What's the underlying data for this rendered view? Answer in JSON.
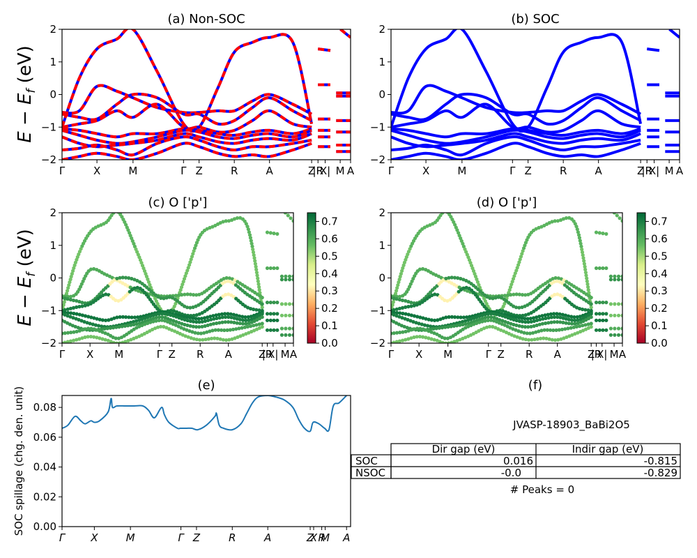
{
  "figure": {
    "ylabel_bands": "E − E_f (eV)",
    "ylabel_bands_base": "E − E",
    "ylabel_bands_sub": "f",
    "ylabel_bands_unit": " (eV)"
  },
  "chart_data": [
    {
      "id": "a",
      "type": "line",
      "title": "(a) Non-SOC",
      "ylim": [
        -2,
        2
      ],
      "yticks": [
        "−2",
        "−1",
        "0",
        "1",
        "2"
      ],
      "kpath_labels": [
        "Γ",
        "X",
        "M",
        "Γ",
        "Z",
        "R",
        "A",
        "Z",
        "|R",
        "X|",
        "M",
        "A"
      ],
      "kpath_positions": [
        0,
        0.121,
        0.246,
        0.421,
        0.475,
        0.597,
        0.719,
        0.865,
        0.887,
        0.912,
        0.964,
        1.0
      ],
      "colors": [
        "#0000ff",
        "#ff0000"
      ],
      "line_style": "red dashed over blue solid",
      "segment_break": 0.887,
      "bands": [
        {
          "k": [
            0,
            0.06,
            0.121,
            0.19,
            0.246,
            0.33,
            0.421,
            0.475,
            0.54,
            0.597,
            0.66,
            0.719,
            0.8,
            0.865
          ],
          "E": [
            -1.0,
            0.5,
            1.4,
            1.7,
            2.0,
            0.7,
            -0.9,
            -1.0,
            0.2,
            1.3,
            1.6,
            1.75,
            1.6,
            -0.9
          ]
        },
        {
          "k": [
            0,
            0.06,
            0.121,
            0.19,
            0.246,
            0.33,
            0.421,
            0.475,
            0.54,
            0.597,
            0.66,
            0.719,
            0.8,
            0.865
          ],
          "E": [
            -0.55,
            -0.5,
            0.25,
            0.1,
            -0.1,
            -0.4,
            -0.55,
            -0.55,
            -0.5,
            -0.5,
            -0.2,
            0.0,
            -0.3,
            -0.6
          ]
        },
        {
          "k": [
            0,
            0.06,
            0.121,
            0.19,
            0.246,
            0.33,
            0.421,
            0.475,
            0.54,
            0.597,
            0.66,
            0.719,
            0.8,
            0.865
          ],
          "E": [
            -0.6,
            -0.7,
            -0.75,
            -0.3,
            0.0,
            -0.1,
            -0.6,
            -0.6,
            -0.9,
            -0.8,
            -0.4,
            -0.1,
            -0.5,
            -0.8
          ]
        },
        {
          "k": [
            0,
            0.06,
            0.121,
            0.19,
            0.246,
            0.33,
            0.421,
            0.475,
            0.54,
            0.597,
            0.66,
            0.719,
            0.8,
            0.865
          ],
          "E": [
            -1.0,
            -0.9,
            -0.8,
            -0.5,
            -0.7,
            -0.3,
            -1.0,
            -1.0,
            -1.15,
            -1.1,
            -0.8,
            -0.5,
            -0.9,
            -1.0
          ]
        },
        {
          "k": [
            0,
            0.06,
            0.121,
            0.19,
            0.246,
            0.33,
            0.421,
            0.475,
            0.54,
            0.597,
            0.66,
            0.719,
            0.8,
            0.865
          ],
          "E": [
            -1.05,
            -1.1,
            -1.2,
            -1.3,
            -1.2,
            -1.2,
            -1.05,
            -1.1,
            -1.2,
            -1.25,
            -1.15,
            -1.1,
            -1.2,
            -1.05
          ]
        },
        {
          "k": [
            0,
            0.06,
            0.121,
            0.19,
            0.246,
            0.33,
            0.421,
            0.475,
            0.54,
            0.597,
            0.66,
            0.719,
            0.8,
            0.865
          ],
          "E": [
            -1.1,
            -1.25,
            -1.4,
            -1.5,
            -1.45,
            -1.3,
            -1.1,
            -1.15,
            -1.3,
            -1.35,
            -1.25,
            -1.2,
            -1.3,
            -1.1
          ]
        },
        {
          "k": [
            0,
            0.06,
            0.121,
            0.19,
            0.246,
            0.33,
            0.421,
            0.475,
            0.54,
            0.597,
            0.66,
            0.719,
            0.8,
            0.865
          ],
          "E": [
            -1.3,
            -1.5,
            -1.6,
            -1.55,
            -1.5,
            -1.4,
            -1.2,
            -1.3,
            -1.45,
            -1.5,
            -1.4,
            -1.35,
            -1.4,
            -1.2
          ]
        },
        {
          "k": [
            0,
            0.06,
            0.121,
            0.19,
            0.246,
            0.33,
            0.421,
            0.475,
            0.54,
            0.597,
            0.66,
            0.719,
            0.8,
            0.865
          ],
          "E": [
            -1.7,
            -1.65,
            -1.55,
            -1.7,
            -1.85,
            -1.5,
            -1.3,
            -1.4,
            -1.6,
            -1.7,
            -1.6,
            -1.6,
            -1.5,
            -1.4
          ]
        },
        {
          "k": [
            0,
            0.06,
            0.121,
            0.19,
            0.246,
            0.33,
            0.421,
            0.475,
            0.54,
            0.597,
            0.66,
            0.719,
            0.8,
            0.865
          ],
          "E": [
            -2.0,
            -1.9,
            -1.8,
            -1.9,
            -2.0,
            -1.8,
            -1.5,
            -1.6,
            -1.8,
            -1.9,
            -1.85,
            -1.9,
            -1.7,
            -1.5
          ]
        },
        {
          "k": [
            0.887,
            0.93
          ],
          "E": [
            1.4,
            1.35
          ]
        },
        {
          "k": [
            0.887,
            0.93
          ],
          "E": [
            0.3,
            0.3
          ]
        },
        {
          "k": [
            0.887,
            0.93
          ],
          "E": [
            -0.75,
            -0.75
          ]
        },
        {
          "k": [
            0.887,
            0.93
          ],
          "E": [
            -1.1,
            -1.1
          ]
        },
        {
          "k": [
            0.887,
            0.93
          ],
          "E": [
            -1.3,
            -1.3
          ]
        },
        {
          "k": [
            0.887,
            0.93
          ],
          "E": [
            -1.6,
            -1.6
          ]
        },
        {
          "k": [
            0.95,
            1.0
          ],
          "E": [
            -0.05,
            -0.05
          ]
        },
        {
          "k": [
            0.95,
            1.0
          ],
          "E": [
            0.05,
            0.05
          ]
        },
        {
          "k": [
            0.95,
            1.0
          ],
          "E": [
            -0.8,
            -0.8
          ]
        },
        {
          "k": [
            0.95,
            1.0
          ],
          "E": [
            -1.15,
            -1.15
          ]
        },
        {
          "k": [
            0.95,
            1.0
          ],
          "E": [
            -1.55,
            -1.55
          ]
        },
        {
          "k": [
            0.95,
            1.0
          ],
          "E": [
            -1.75,
            -1.75
          ]
        },
        {
          "k": [
            0.965,
            1.0
          ],
          "E": [
            2.0,
            1.75
          ]
        }
      ]
    },
    {
      "id": "b",
      "type": "line",
      "title": "(b) SOC",
      "ylim": [
        -2,
        2
      ],
      "yticks": [
        "−2",
        "−1",
        "0",
        "1",
        "2"
      ],
      "kpath_labels": [
        "Γ",
        "X",
        "M",
        "Γ",
        "Z",
        "R",
        "A",
        "Z",
        "|R",
        "X|",
        "M",
        "A"
      ],
      "kpath_positions": [
        0,
        0.121,
        0.246,
        0.421,
        0.475,
        0.597,
        0.719,
        0.865,
        0.887,
        0.912,
        0.964,
        1.0
      ],
      "colors": [
        "#0000ff"
      ],
      "bands_same_as": "a"
    },
    {
      "id": "c",
      "type": "scatter",
      "title": "(c)  O ['p']",
      "ylim": [
        -2,
        2
      ],
      "yticks": [
        "−2",
        "−1",
        "0",
        "1",
        "2"
      ],
      "kpath_labels": [
        "Γ",
        "X",
        "M",
        "Γ",
        "Z",
        "R",
        "A",
        "Z",
        "|R",
        "X|",
        "M",
        "A"
      ],
      "kpath_positions": [
        0,
        0.121,
        0.246,
        0.421,
        0.475,
        0.597,
        0.719,
        0.865,
        0.887,
        0.912,
        0.964,
        1.0
      ],
      "colormap": "RdYlGn",
      "colorbar": {
        "min": 0.0,
        "max": 0.75,
        "ticks": [
          "0.0",
          "0.1",
          "0.2",
          "0.3",
          "0.4",
          "0.5",
          "0.6",
          "0.7"
        ]
      },
      "weights": [
        0.55,
        0.6,
        0.65,
        0.7,
        0.72,
        0.7,
        0.65,
        0.62,
        0.55
      ],
      "weights_note": "per-band O p weight; yellow dips near M and A at E≈0"
    },
    {
      "id": "d",
      "type": "scatter",
      "title": "(d) O ['p']",
      "ylim": [
        -2,
        2
      ],
      "yticks": [
        "−2",
        "−1",
        "0",
        "1",
        "2"
      ],
      "kpath_labels": [
        "Γ",
        "X",
        "M",
        "Γ",
        "Z",
        "R",
        "A",
        "Z",
        "|R",
        "X|",
        "M",
        "A"
      ],
      "kpath_positions": [
        0,
        0.121,
        0.246,
        0.421,
        0.475,
        0.597,
        0.719,
        0.865,
        0.887,
        0.912,
        0.964,
        1.0
      ],
      "colormap": "RdYlGn",
      "colorbar": {
        "min": 0.0,
        "max": 0.75,
        "ticks": [
          "0.0",
          "0.1",
          "0.2",
          "0.3",
          "0.4",
          "0.5",
          "0.6",
          "0.7"
        ]
      }
    },
    {
      "id": "e",
      "type": "line",
      "title": "(e)",
      "ylabel": "SOC spillage (chg. den. unit)",
      "ylim": [
        0,
        0.088
      ],
      "yticks": [
        "0.00",
        "0.02",
        "0.04",
        "0.06",
        "0.08"
      ],
      "ytick_values": [
        0,
        0.02,
        0.04,
        0.06,
        0.08
      ],
      "kpath_labels": [
        "Γ",
        "X",
        "M",
        "Γ",
        "Z",
        "R",
        "A",
        "Z",
        "X",
        "R",
        "M",
        "A"
      ],
      "kpath_positions": [
        0,
        0.112,
        0.237,
        0.412,
        0.466,
        0.59,
        0.713,
        0.86,
        0.872,
        0.9,
        0.912,
        0.986
      ],
      "color": "#1f77b4",
      "x": [
        0,
        0.02,
        0.045,
        0.065,
        0.08,
        0.1,
        0.112,
        0.13,
        0.16,
        0.17,
        0.175,
        0.19,
        0.22,
        0.25,
        0.28,
        0.3,
        0.32,
        0.345,
        0.355,
        0.37,
        0.4,
        0.41,
        0.43,
        0.45,
        0.47,
        0.5,
        0.53,
        0.535,
        0.545,
        0.56,
        0.59,
        0.62,
        0.64,
        0.66,
        0.68,
        0.713,
        0.74,
        0.77,
        0.8,
        0.82,
        0.84,
        0.86,
        0.87,
        0.89,
        0.91,
        0.925,
        0.94,
        0.96,
        0.986
      ],
      "y": [
        0.066,
        0.068,
        0.074,
        0.071,
        0.069,
        0.071,
        0.07,
        0.071,
        0.077,
        0.086,
        0.08,
        0.081,
        0.081,
        0.081,
        0.081,
        0.078,
        0.073,
        0.08,
        0.075,
        0.07,
        0.066,
        0.066,
        0.066,
        0.066,
        0.065,
        0.068,
        0.074,
        0.076,
        0.068,
        0.066,
        0.065,
        0.069,
        0.076,
        0.083,
        0.087,
        0.088,
        0.087,
        0.085,
        0.08,
        0.072,
        0.066,
        0.064,
        0.07,
        0.069,
        0.066,
        0.065,
        0.081,
        0.083,
        0.088
      ]
    },
    {
      "id": "f",
      "type": "table",
      "title": "(f)",
      "material": "JVASP-18903_BaBi2O5",
      "columns": [
        "",
        "Dir gap (eV)",
        "Indir gap (eV)"
      ],
      "rows": [
        [
          "SOC",
          "0.016",
          "-0.815"
        ],
        [
          "NSOC",
          "-0.0",
          "-0.829"
        ]
      ],
      "footer": "# Peaks = 0"
    }
  ]
}
